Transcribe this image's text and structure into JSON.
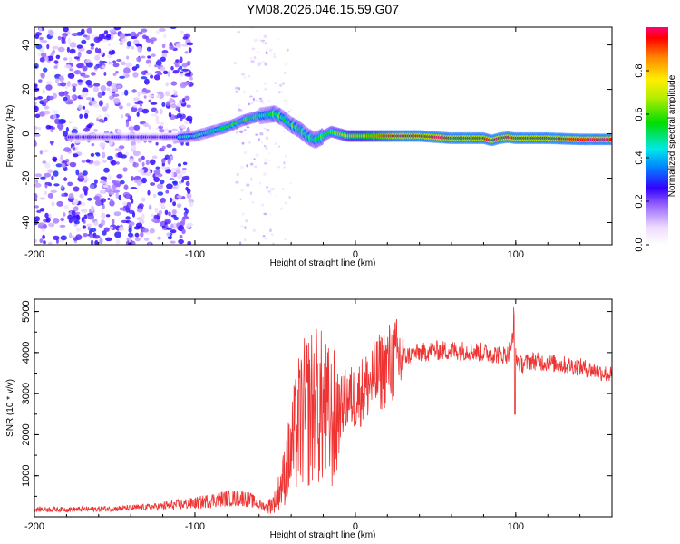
{
  "title": "YM08.2026.046.15.59.G07",
  "chart_data": [
    {
      "type": "heatmap",
      "xlabel": "Height of straight line (km)",
      "ylabel": "Frequency (Hz)",
      "xlim": [
        -200,
        160
      ],
      "ylim": [
        -50,
        48
      ],
      "xticks": [
        -200,
        -100,
        0,
        100
      ],
      "yticks": [
        -40,
        -20,
        0,
        20,
        40
      ],
      "ridge": {
        "x": [
          -175,
          -150,
          -130,
          -120,
          -110,
          -100,
          -90,
          -80,
          -70,
          -60,
          -50,
          -45,
          -40,
          -35,
          -30,
          -25,
          -20,
          -15,
          -10,
          -5,
          0,
          20,
          40,
          60,
          70,
          80,
          85,
          90,
          95,
          100,
          120,
          140,
          160
        ],
        "freq": [
          -1.5,
          -1.5,
          -1.5,
          -1.5,
          -1.5,
          -1,
          1,
          3,
          6,
          8,
          9,
          7,
          4,
          2,
          -1,
          -3,
          -1,
          1,
          0,
          -1,
          -1,
          -1,
          -1,
          -2,
          -2,
          -2,
          -3,
          -2,
          -1.5,
          -2,
          -2,
          -2.5,
          -2.5
        ]
      },
      "colorbar": {
        "label": "Normalized spectral amplitude",
        "ticks": [
          "0.0",
          "0.2",
          "0.4",
          "0.6",
          "0.8"
        ],
        "range": [
          0,
          1
        ]
      }
    },
    {
      "type": "line",
      "xlabel": "Height of straight line (km)",
      "ylabel": "SNR (10 * v/v)",
      "xlim": [
        -200,
        160
      ],
      "ylim": [
        0,
        5300
      ],
      "xticks": [
        -200,
        -100,
        0,
        100
      ],
      "yticks": [
        1000,
        2000,
        3000,
        4000,
        5000
      ],
      "series": [
        {
          "name": "SNR",
          "color": "#ee3333",
          "x": [
            -200,
            -180,
            -160,
            -140,
            -120,
            -100,
            -90,
            -80,
            -70,
            -65,
            -60,
            -55,
            -50,
            -45,
            -40,
            -35,
            -30,
            -25,
            -20,
            -15,
            -10,
            -5,
            0,
            10,
            20,
            30,
            40,
            50,
            60,
            70,
            80,
            90,
            95,
            98,
            100,
            103,
            110,
            120,
            130,
            140,
            150,
            160
          ],
          "values": [
            180,
            180,
            190,
            210,
            260,
            330,
            400,
            450,
            460,
            400,
            300,
            230,
            380,
            900,
            1600,
            2300,
            2600,
            2700,
            2600,
            2300,
            2600,
            2900,
            2900,
            3300,
            3700,
            3900,
            4000,
            4050,
            4050,
            4050,
            4000,
            3950,
            3950,
            4300,
            3900,
            3700,
            3800,
            3750,
            3700,
            3650,
            3550,
            3450
          ]
        }
      ]
    }
  ]
}
